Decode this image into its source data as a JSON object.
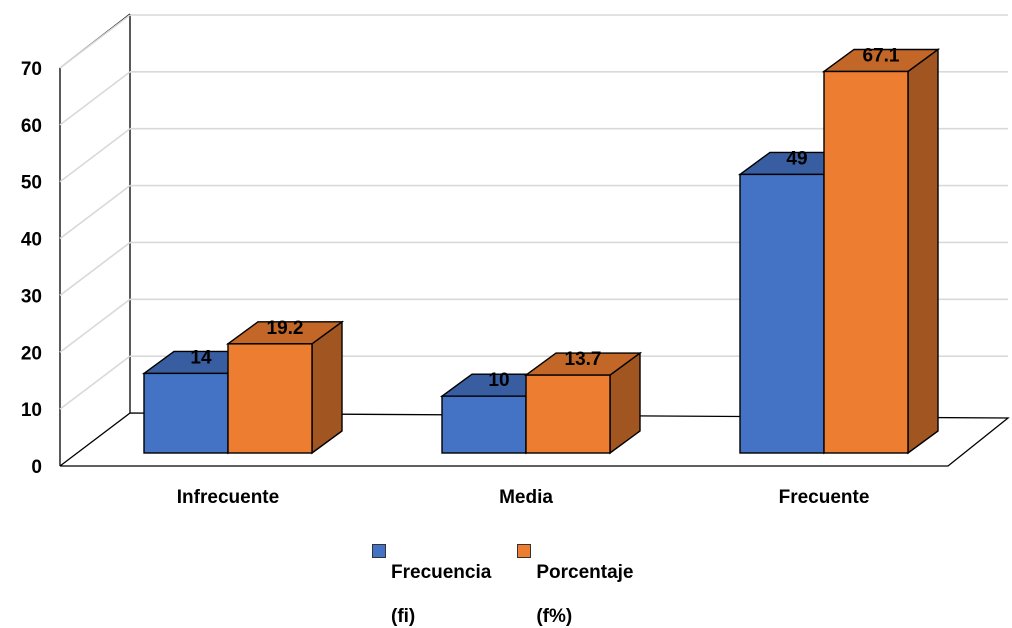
{
  "chart_data": {
    "type": "bar",
    "categories": [
      "Infrecuente",
      "Media",
      "Frecuente"
    ],
    "series": [
      {
        "name": "Frecuencia (fi)",
        "legend_lines": [
          "Frecuencia",
          "(fi)"
        ],
        "color": "#4472C4",
        "values": [
          14,
          10,
          49
        ],
        "labels": [
          "14",
          "10",
          "49"
        ]
      },
      {
        "name": "Porcentaje (f%)",
        "legend_lines": [
          "Porcentaje",
          "(f%)"
        ],
        "color": "#ED7D31",
        "values": [
          19.2,
          13.7,
          67.1
        ],
        "labels": [
          "19.2",
          "13.7",
          "67.1"
        ]
      }
    ],
    "yticks": [
      "0",
      "10",
      "20",
      "30",
      "40",
      "50",
      "60",
      "70"
    ],
    "ylim": [
      0,
      70
    ],
    "grid": true,
    "legend_position": "bottom",
    "style": "3d-clustered-column"
  }
}
